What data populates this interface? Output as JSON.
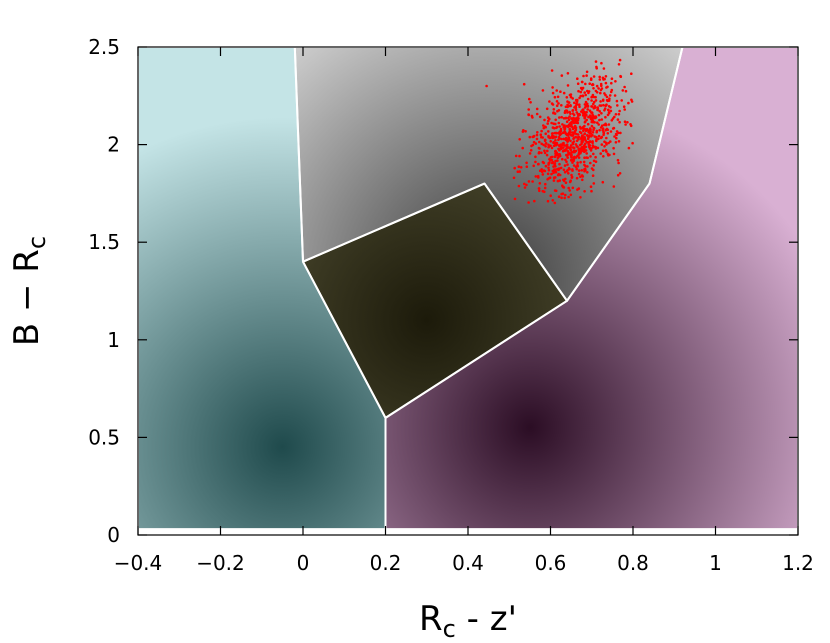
{
  "chart_data": {
    "type": "scatter",
    "title": "",
    "xlabel": "R",
    "xlabel_sub": "c",
    "xlabel_rest": " - z'",
    "ylabel": "B − R",
    "ylabel_sub": "c",
    "xlim": [
      -0.4,
      1.2
    ],
    "ylim": [
      0,
      2.5
    ],
    "xticks": [
      -0.4,
      -0.2,
      0,
      0.2,
      0.4,
      0.6,
      0.8,
      1,
      1.2
    ],
    "xtick_labels": [
      "−0.4",
      "−0.2",
      "0",
      "0.2",
      "0.4",
      "0.6",
      "0.8",
      "1",
      "1.2"
    ],
    "yticks": [
      0,
      0.5,
      1,
      1.5,
      2,
      2.5
    ],
    "ytick_labels": [
      "0",
      "0.5",
      "1",
      "1.5",
      "2",
      "2.5"
    ],
    "grid": false,
    "regions": [
      {
        "name": "cyan-region",
        "color": "#1f4a4c",
        "light": "#c4e4e6",
        "density_center": [
          -0.05,
          0.45
        ],
        "polygon": [
          [
            -0.4,
            2.5
          ],
          [
            -0.02,
            2.5
          ],
          [
            0,
            1.4
          ],
          [
            0.2,
            0.6
          ],
          [
            0.2,
            0.03
          ],
          [
            -0.4,
            0.03
          ]
        ]
      },
      {
        "name": "gray-region",
        "color": "#3a3a3a",
        "light": "#dadada",
        "density_center": [
          0.45,
          1.3
        ],
        "polygon": [
          [
            -0.02,
            2.5
          ],
          [
            0.92,
            2.5
          ],
          [
            0.84,
            1.8
          ],
          [
            0.64,
            1.2
          ],
          [
            0.44,
            1.8
          ],
          [
            0,
            1.4
          ]
        ]
      },
      {
        "name": "olive-region",
        "color": "#1c1a0a",
        "light": "#6d6b4a",
        "density_center": [
          0.3,
          1.1
        ],
        "polygon": [
          [
            0,
            1.4
          ],
          [
            0.44,
            1.8
          ],
          [
            0.64,
            1.2
          ],
          [
            0.2,
            0.6
          ]
        ]
      },
      {
        "name": "magenta-region",
        "color": "#2b0d24",
        "light": "#d9b0d3",
        "density_center": [
          0.55,
          0.55
        ],
        "polygon": [
          [
            0.92,
            2.5
          ],
          [
            1.2,
            2.5
          ],
          [
            1.2,
            0.03
          ],
          [
            0.2,
            0.03
          ],
          [
            0.2,
            0.6
          ],
          [
            0.64,
            1.2
          ],
          [
            0.84,
            1.8
          ]
        ]
      }
    ],
    "scatter_series": {
      "color": "#ff0000",
      "center": [
        0.66,
        2.05
      ],
      "spread": [
        0.06,
        0.14
      ],
      "count": 900,
      "extent_x": [
        0.48,
        0.8
      ],
      "extent_y": [
        1.7,
        2.44
      ]
    }
  }
}
